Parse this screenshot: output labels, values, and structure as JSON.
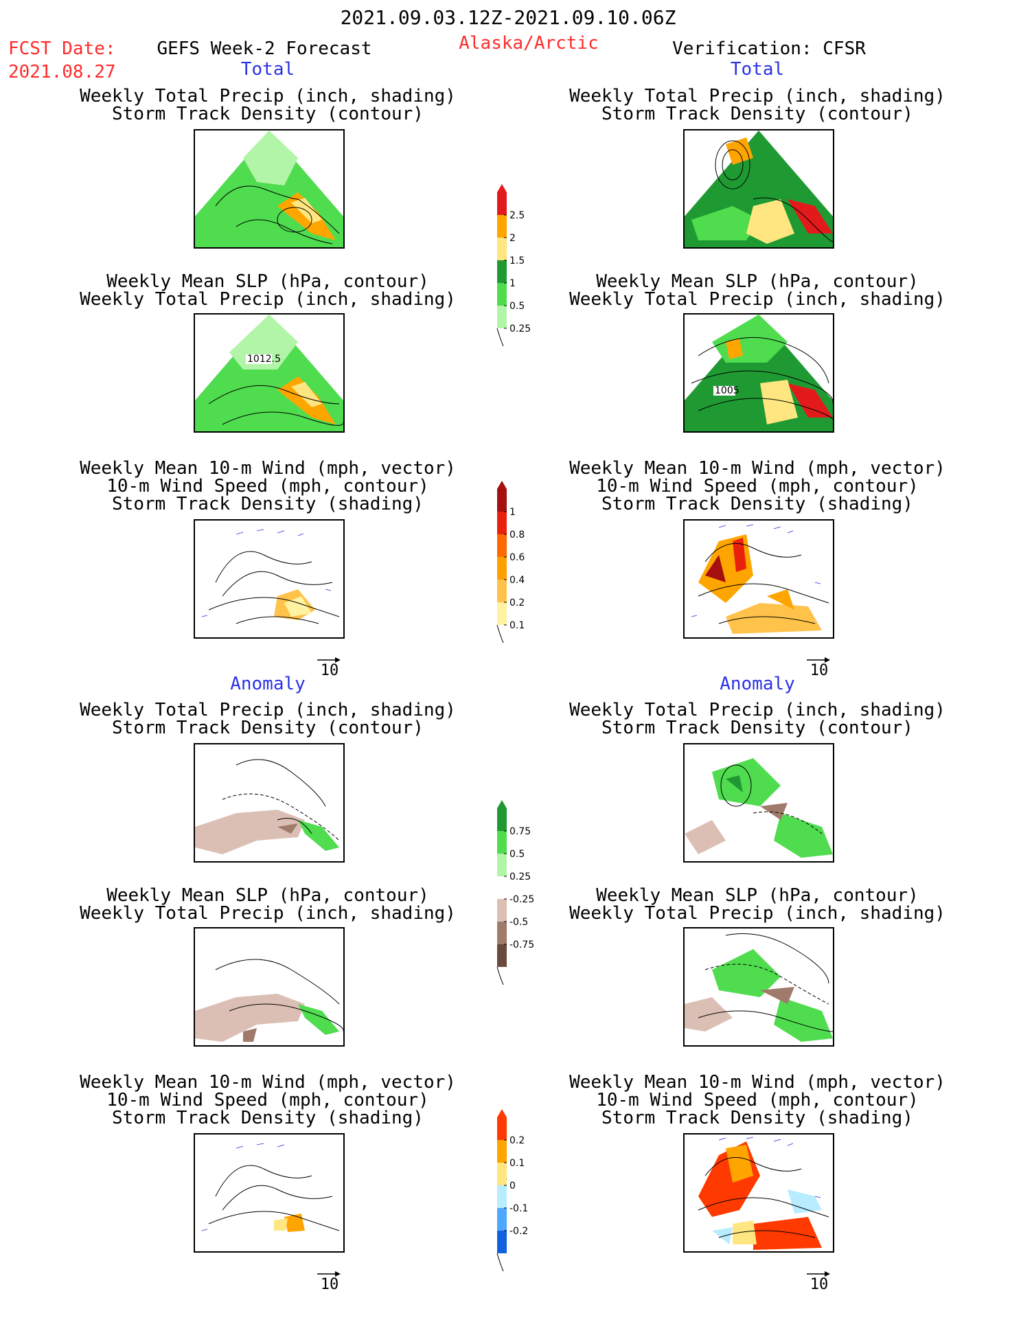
{
  "header": {
    "date_range": "2021.09.03.12Z-2021.09.10.06Z",
    "fcst_date_label": "FCST Date:",
    "fcst_date_value": "2021.08.27",
    "left_title": "GEFS Week-2 Forecast",
    "region": "Alaska/Arctic",
    "right_title": "Verification: CFSR"
  },
  "sections": {
    "total": "Total",
    "anomaly": "Anomaly"
  },
  "panel_titles": {
    "precip_storm": [
      "Weekly Total Precip (inch, shading)",
      "Storm Track Density (contour)"
    ],
    "slp_precip": [
      "Weekly Mean SLP (hPa, contour)",
      "Weekly Total Precip (inch, shading)"
    ],
    "wind_storm": [
      "Weekly Mean 10-m Wind (mph, vector)",
      "10-m Wind Speed (mph, contour)",
      "Storm Track Density (shading)"
    ]
  },
  "contour_labels": {
    "fcst_slp": "1012.5",
    "cfsr_slp": "1005"
  },
  "vector_ref": "10",
  "colorbars": {
    "precip_total": {
      "labels": [
        "2.5",
        "2",
        "1.5",
        "1",
        "0.5",
        "0.25"
      ],
      "colors": [
        "#e31a1c",
        "#ffa500",
        "#ffe680",
        "#1f9a33",
        "#4fdc4f",
        "#b2f5a8"
      ]
    },
    "storm_total": {
      "labels": [
        "1",
        "0.8",
        "0.6",
        "0.4",
        "0.2",
        "0.1"
      ],
      "colors": [
        "#a50f0f",
        "#e8200c",
        "#ff6a00",
        "#ff9f00",
        "#ffc24a",
        "#fff2a0"
      ]
    },
    "precip_anom": {
      "labels": [
        "0.75",
        "0.5",
        "0.25",
        "-0.25",
        "-0.5",
        "-0.75"
      ],
      "colors": [
        "#1f9a33",
        "#4fdc4f",
        "#b2f5a8",
        "#ffffff",
        "#dcbfb4",
        "#a07a6a",
        "#6a4a3c"
      ]
    },
    "storm_anom": {
      "labels": [
        "0.2",
        "0.1",
        "0",
        "-0.1",
        "-0.2"
      ],
      "colors": [
        "#ff3a00",
        "#ffa500",
        "#ffe680",
        "#b8ecff",
        "#4fa8ff",
        "#1060e0"
      ]
    }
  }
}
